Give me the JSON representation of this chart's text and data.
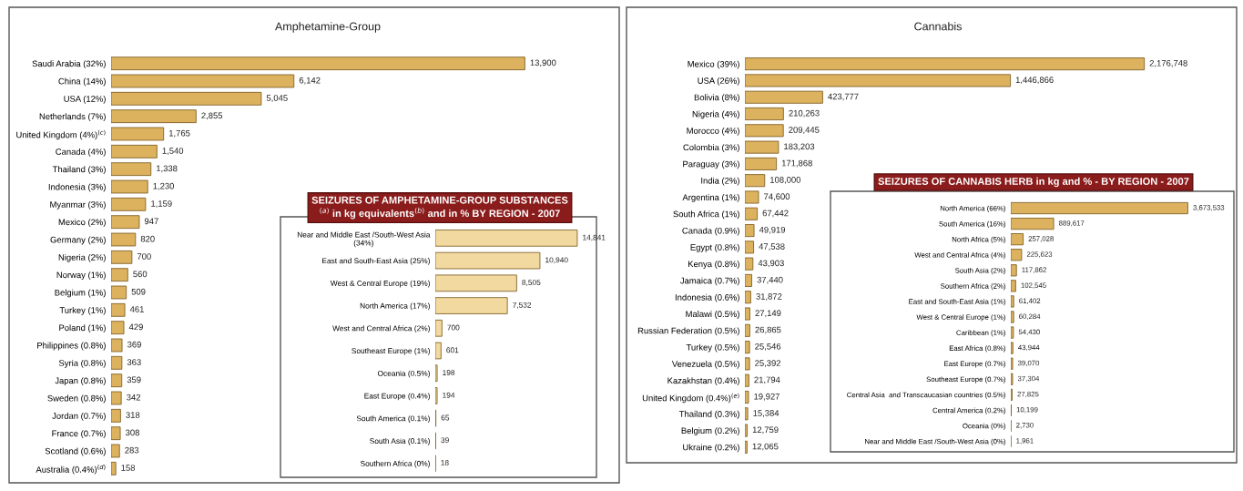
{
  "chart_data": [
    {
      "type": "bar",
      "orientation": "horizontal",
      "title": "Amphetamine-Group",
      "tick_labels": "y",
      "color": "#dcb25e",
      "categories": [
        "Saudi Arabia (32%)",
        "China (14%)",
        "USA (12%)",
        "Netherlands (7%)",
        "United Kingdom (4%)$^{(c)}$",
        "Canada (4%)",
        "Thailand (3%)",
        "Indonesia (3%)",
        "Myanmar (3%)",
        "Mexico (2%)",
        "Germany (2%)",
        "Nigeria (2%)",
        "Norway (1%)",
        "Belgium (1%)",
        "Turkey (1%)",
        "Poland (1%)",
        "Philippines (0.8%)",
        "Syria (0.8%)",
        "Japan (0.8%)",
        "Sweden (0.8%)",
        "Jordan (0.7%)",
        "France (0.7%)",
        "Scotland (0.6%)",
        "Australia (0.4%)$^{(d)}$"
      ],
      "values": [
        13900,
        6142,
        5045,
        2855,
        1765,
        1540,
        1338,
        1230,
        1159,
        947,
        820,
        700,
        560,
        509,
        461,
        429,
        369,
        363,
        359,
        342,
        318,
        308,
        283,
        158
      ],
      "value_labels": [
        "13,900",
        "6,142",
        "5,045",
        "2,855",
        "1,765",
        "1,540",
        "1,338",
        "1,230",
        "1,159",
        "947",
        "820",
        "700",
        "560",
        "509",
        "461",
        "429",
        "369",
        "363",
        "359",
        "342",
        "318",
        "308",
        "283",
        "158"
      ]
    },
    {
      "type": "bar",
      "orientation": "horizontal",
      "title": "SEIZURES OF AMPHETAMINE-GROUP SUBSTANCES\n$^{(a)}$ in kg equivalents$^{(b)}$ and in % BY REGION - 2007",
      "tick_labels": "y",
      "color": "#f2d9a0",
      "categories": [
        "Near and Middle East /South-West Asia\n(34%)",
        "East and South-East Asia (25%)",
        "West & Central Europe (19%)",
        "North America (17%)",
        "West and Central Africa (2%)",
        "Southeast Europe (1%)",
        "Oceania (0.5%)",
        "East Europe (0.4%)",
        "South America (0.1%)",
        "South Asia (0.1%)",
        "Southern Africa (0%)"
      ],
      "values": [
        14841,
        10940,
        8505,
        7532,
        700,
        601,
        198,
        194,
        65,
        39,
        18
      ],
      "value_labels": [
        "14,841",
        "10,940",
        "8,505",
        "7,532",
        "700",
        "601",
        "198",
        "194",
        "65",
        "39",
        "18"
      ]
    },
    {
      "type": "bar",
      "orientation": "horizontal",
      "title": "Cannabis",
      "tick_labels": "y",
      "color": "#dcb25e",
      "categories": [
        "Mexico (39%)",
        "USA (26%)",
        "Bolivia (8%)",
        "Nigeria (4%)",
        "Morocco (4%)",
        "Colombia (3%)",
        "Paraguay (3%)",
        "India (2%)",
        "Argentina (1%)",
        "South Africa (1%)",
        "Canada (0.9%)",
        "Egypt (0.8%)",
        "Kenya (0.8%)",
        "Jamaica (0.7%)",
        "Indonesia (0.6%)",
        "Malawi (0.5%)",
        "Russian Federation (0.5%)",
        "Turkey (0.5%)",
        "Venezuela (0.5%)",
        "Kazakhstan (0.4%)",
        "United Kingdom (0.4%)$^{(e)}$",
        "Thailand (0.3%)",
        "Belgium (0.2%)",
        "Ukraine (0.2%)"
      ],
      "values": [
        2176748,
        1446866,
        423777,
        210263,
        209445,
        183203,
        171868,
        108000,
        74600,
        67442,
        49919,
        47538,
        43903,
        37440,
        31872,
        27149,
        26865,
        25546,
        25392,
        21794,
        19927,
        15384,
        12759,
        12065
      ],
      "value_labels": [
        "2,176,748",
        "1,446,866",
        "423,777",
        "210,263",
        "209,445",
        "183,203",
        "171,868",
        "108,000",
        "74,600",
        "67,442",
        "49,919",
        "47,538",
        "43,903",
        "37,440",
        "31,872",
        "27,149",
        "26,865",
        "25,546",
        "25,392",
        "21,794",
        "19,927",
        "15,384",
        "12,759",
        "12,065"
      ]
    },
    {
      "type": "bar",
      "orientation": "horizontal",
      "title": "SEIZURES OF CANNABIS HERB in kg and % - BY REGION - 2007",
      "tick_labels": "y",
      "color": "#dcb25e",
      "categories": [
        "North America (66%)",
        "South America (16%)",
        "North Africa (5%)",
        "West and Central Africa (4%)",
        "South Asia (2%)",
        "Southern Africa (2%)",
        "East and South-East Asia (1%)",
        "West & Central Europe (1%)",
        "Caribbean (1%)",
        "East Africa (0.8%)",
        "East Europe (0.7%)",
        "Southeast Europe (0.7%)",
        "Central Asia  and Transcaucasian countries (0.5%)",
        "Central America (0.2%)",
        "Oceania (0%)",
        "Near and Middle East /South-West Asia (0%)"
      ],
      "values": [
        3673533,
        889617,
        257028,
        225623,
        117862,
        102545,
        61402,
        60284,
        54430,
        43944,
        39070,
        37304,
        27825,
        10199,
        2730,
        1961
      ],
      "value_labels": [
        "3,673,533",
        "889,617",
        "257,028",
        "225,623",
        "117,862",
        "102,545",
        "61,402",
        "60,284",
        "54,430",
        "43,944",
        "39,070",
        "37,304",
        "27,825",
        "10,199",
        "2,730",
        "1,961"
      ]
    }
  ]
}
